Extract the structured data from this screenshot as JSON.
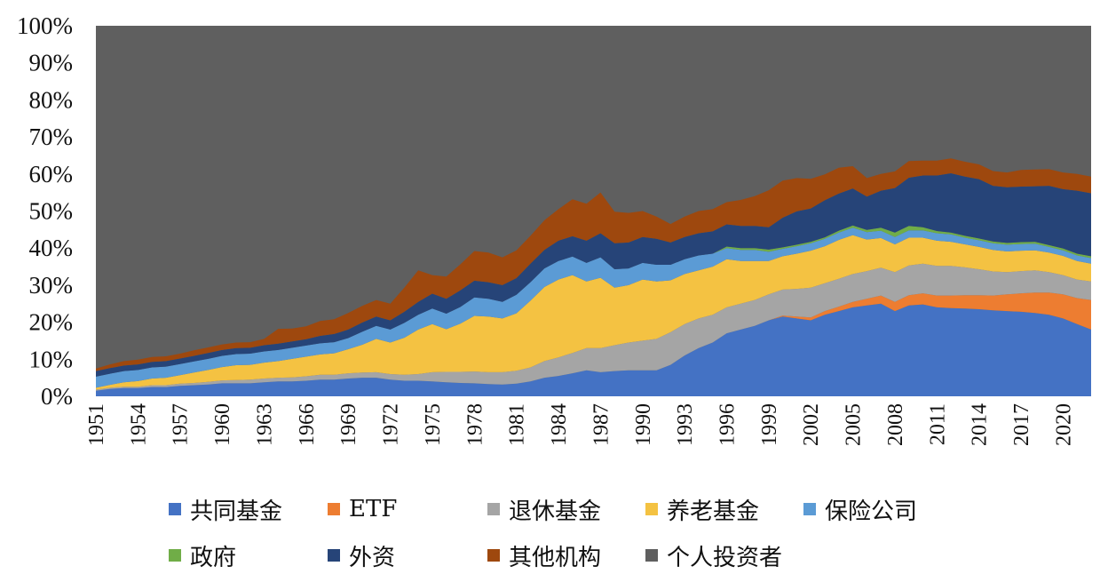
{
  "chart_data": {
    "type": "area",
    "stacked": true,
    "normalized_percent": true,
    "title": "",
    "xlabel": "",
    "ylabel": "",
    "ylim": [
      0,
      100
    ],
    "y_ticks": [
      "0%",
      "10%",
      "20%",
      "30%",
      "40%",
      "50%",
      "60%",
      "70%",
      "80%",
      "90%",
      "100%"
    ],
    "x": [
      1951,
      1952,
      1953,
      1954,
      1955,
      1956,
      1957,
      1958,
      1959,
      1960,
      1961,
      1962,
      1963,
      1964,
      1965,
      1966,
      1967,
      1968,
      1969,
      1970,
      1971,
      1972,
      1973,
      1974,
      1975,
      1976,
      1977,
      1978,
      1979,
      1980,
      1981,
      1982,
      1983,
      1984,
      1985,
      1986,
      1987,
      1988,
      1989,
      1990,
      1991,
      1992,
      1993,
      1994,
      1995,
      1996,
      1997,
      1998,
      1999,
      2000,
      2001,
      2002,
      2003,
      2004,
      2005,
      2006,
      2007,
      2008,
      2009,
      2010,
      2011,
      2012,
      2013,
      2014,
      2015,
      2016,
      2017,
      2018,
      2019,
      2020,
      2021,
      2022
    ],
    "x_tick_labels": [
      "1951",
      "1954",
      "1957",
      "1960",
      "1963",
      "1966",
      "1969",
      "1972",
      "1975",
      "1978",
      "1981",
      "1984",
      "1987",
      "1990",
      "1993",
      "1996",
      "1999",
      "2002",
      "2005",
      "2008",
      "2011",
      "2014",
      "2017",
      "2020"
    ],
    "legend_position": "bottom",
    "series": [
      {
        "name": "共同基金",
        "color": "#4472c4",
        "values": [
          1.5,
          2,
          2.2,
          2.2,
          2.5,
          2.5,
          2.8,
          3,
          3.2,
          3.5,
          3.5,
          3.5,
          3.8,
          4,
          4,
          4.2,
          4.5,
          4.5,
          4.8,
          5,
          5,
          4.5,
          4.2,
          4.2,
          4,
          3.8,
          3.6,
          3.5,
          3.3,
          3.2,
          3.4,
          4,
          5,
          5.5,
          6.2,
          7,
          6.5,
          6.8,
          7,
          7,
          7,
          8.5,
          11,
          13,
          14.5,
          17,
          18,
          19,
          20.5,
          21.5,
          21,
          20.5,
          22,
          23,
          24,
          24.5,
          25,
          23,
          24.5,
          24.8,
          24,
          23.8,
          23.7,
          23.5,
          23.2,
          23,
          22.8,
          22.5,
          22,
          21,
          19.5,
          18
        ]
      },
      {
        "name": "ETF",
        "color": "#ed7d31",
        "values": [
          0,
          0,
          0,
          0,
          0,
          0,
          0,
          0,
          0,
          0,
          0,
          0,
          0,
          0,
          0,
          0,
          0,
          0,
          0,
          0,
          0,
          0,
          0,
          0,
          0,
          0,
          0,
          0,
          0,
          0,
          0,
          0,
          0,
          0,
          0,
          0,
          0,
          0,
          0,
          0,
          0,
          0,
          0,
          0,
          0,
          0,
          0,
          0,
          0,
          0.3,
          0.5,
          0.8,
          1,
          1.2,
          1.5,
          1.8,
          2.2,
          2.5,
          2.8,
          3,
          3.2,
          3.4,
          3.6,
          3.8,
          4,
          4.5,
          5,
          5.5,
          6,
          6.5,
          7,
          8
        ]
      },
      {
        "name": "退休基金",
        "color": "#a5a5a5",
        "values": [
          0.3,
          0.3,
          0.4,
          0.4,
          0.5,
          0.5,
          0.6,
          0.6,
          0.7,
          0.8,
          0.9,
          1,
          1,
          1,
          1.1,
          1.2,
          1.3,
          1.3,
          1.4,
          1.4,
          1.5,
          1.5,
          1.6,
          1.8,
          2.5,
          2.8,
          3,
          3.2,
          3.2,
          3.3,
          3.5,
          3.8,
          4.5,
          5,
          5.5,
          6,
          6.5,
          7,
          7.5,
          8,
          8.5,
          8.8,
          8.5,
          8,
          7.5,
          7,
          7,
          7,
          7,
          7,
          7.5,
          8,
          7.5,
          7.5,
          7.5,
          7.5,
          7.5,
          8,
          8,
          8,
          8,
          8,
          7.5,
          7,
          6.5,
          6,
          6,
          6,
          5.5,
          5.2,
          5,
          5
        ]
      },
      {
        "name": "养老基金",
        "color": "#f4c242",
        "values": [
          0.5,
          0.8,
          1.2,
          1.5,
          1.8,
          2,
          2.3,
          2.8,
          3.2,
          3.6,
          4,
          4,
          4.3,
          4.5,
          5,
          5.3,
          5.5,
          5.8,
          6.5,
          7.5,
          9,
          8.5,
          10,
          12,
          13,
          11.5,
          13,
          15,
          15,
          14.5,
          15.5,
          18,
          20,
          21,
          21,
          18,
          19,
          15.5,
          15.5,
          16.5,
          15.5,
          14,
          13.5,
          13,
          13,
          13,
          11.5,
          10.5,
          9,
          9,
          9.5,
          10,
          10,
          10.5,
          10.5,
          8.5,
          8,
          7.5,
          7.5,
          7,
          6.8,
          6.5,
          6.2,
          6,
          5.8,
          5.6,
          5.5,
          5.4,
          5.3,
          5.2,
          5,
          4.8
        ]
      },
      {
        "name": "保险公司",
        "color": "#5b9bd5",
        "values": [
          3,
          3,
          3,
          3,
          3,
          3,
          3,
          3,
          3,
          3,
          3,
          3,
          3,
          3,
          3,
          3,
          3,
          3,
          3,
          3.5,
          3.5,
          3.5,
          4,
          4,
          4.2,
          4.2,
          4.5,
          5,
          4.8,
          4.5,
          5,
          5,
          5,
          5,
          5,
          5,
          5.5,
          5,
          4.5,
          4.5,
          4.5,
          4.2,
          4,
          4,
          3.5,
          3,
          3,
          3,
          2.5,
          2,
          2,
          2,
          2,
          2,
          2,
          2,
          2,
          2,
          2,
          2,
          2,
          2,
          1.8,
          1.8,
          1.8,
          1.8,
          1.8,
          1.8,
          1.5,
          1.5,
          1.5,
          1.5
        ]
      },
      {
        "name": "政府",
        "color": "#70ad47",
        "values": [
          0,
          0,
          0,
          0,
          0,
          0,
          0,
          0,
          0,
          0,
          0,
          0,
          0,
          0,
          0,
          0,
          0,
          0,
          0,
          0,
          0,
          0,
          0,
          0,
          0,
          0,
          0,
          0,
          0,
          0,
          0,
          0,
          0,
          0,
          0,
          0,
          0,
          0,
          0,
          0,
          0,
          0,
          0,
          0,
          0,
          0.4,
          0.5,
          0.5,
          0.6,
          0.4,
          0.4,
          0.4,
          0.4,
          0.5,
          0.6,
          0.6,
          0.8,
          1.2,
          1.2,
          0.8,
          0.6,
          0.5,
          0.5,
          0.5,
          0.5,
          0.5,
          0.5,
          0.5,
          0.5,
          0.5,
          0.5,
          0.5
        ]
      },
      {
        "name": "外资",
        "color": "#264478",
        "values": [
          1.5,
          1.5,
          1.5,
          1.5,
          1.5,
          1.5,
          1.5,
          1.5,
          1.6,
          1.6,
          1.6,
          1.6,
          1.7,
          1.7,
          1.7,
          1.7,
          2,
          2.2,
          2.3,
          2.5,
          2.5,
          2.5,
          3,
          3.5,
          4,
          4,
          4.5,
          4.5,
          4.5,
          4.5,
          4.5,
          5,
          5,
          5.5,
          5.5,
          6,
          6.5,
          7,
          7,
          7,
          7,
          6,
          6,
          6,
          6,
          6,
          6,
          6,
          6,
          8,
          9,
          9,
          10,
          10,
          10,
          9,
          10,
          12,
          13,
          14,
          15,
          16,
          16,
          16,
          15,
          15,
          15,
          15,
          16,
          16,
          17,
          17
        ]
      },
      {
        "name": "其他机构",
        "color": "#9e480e",
        "values": [
          0.7,
          1,
          1.2,
          1.3,
          1.3,
          1.3,
          1.3,
          1.5,
          1.5,
          1.5,
          1.5,
          1.5,
          1.7,
          4,
          3.5,
          3.5,
          4,
          4,
          4.5,
          4.5,
          4.5,
          4.5,
          6.5,
          8.5,
          5,
          6,
          7,
          8,
          8,
          7.5,
          7.5,
          7.5,
          8,
          8.5,
          10,
          10,
          11,
          8.5,
          8,
          7,
          6,
          5,
          5.5,
          6,
          6,
          6,
          7,
          8,
          10,
          10,
          9,
          8,
          7,
          7,
          6,
          5,
          4.5,
          4.5,
          4.5,
          4,
          4,
          4,
          4,
          4,
          4,
          4,
          4.5,
          4.5,
          4.5,
          4.5,
          4.5,
          4.5
        ]
      },
      {
        "name": "个人投资者",
        "color": "#5f5f5f",
        "values": "remainder to 100%"
      }
    ]
  }
}
